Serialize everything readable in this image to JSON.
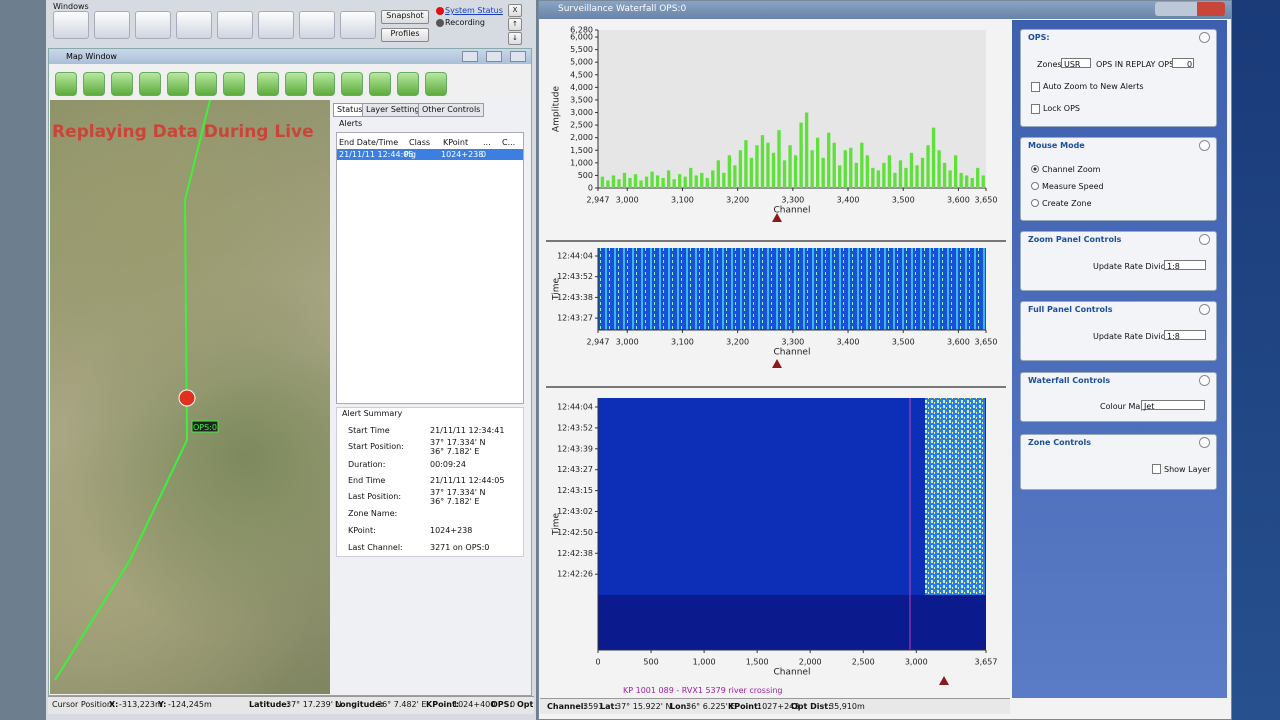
{
  "toolbar": {
    "title": "Windows",
    "buttons": [
      "Snapshot",
      "Profiles"
    ],
    "status": [
      "System Status",
      "Recording"
    ],
    "small_buttons": [
      "X",
      "↑",
      "↓"
    ]
  },
  "map_window": {
    "title": "Map Window",
    "overlay": "Replaying Data During Live",
    "marker": "OPS:0",
    "tabs": [
      "Status",
      "Layer Settings",
      "Other Controls"
    ],
    "alerts": {
      "title": "Alerts",
      "headers": [
        "End Date/Time",
        "Class",
        "KPoint",
        "...",
        "C..."
      ],
      "rows": [
        [
          "21/11/11 12:44:05",
          "Pig",
          "1024+238",
          "0"
        ]
      ]
    },
    "summary": {
      "title": "Alert Summary",
      "fields": [
        {
          "label": "Start Time",
          "value": [
            "21/11/11 12:34:41"
          ]
        },
        {
          "label": "Start Position:",
          "value": [
            "37° 17.334' N",
            "36° 7.182' E"
          ]
        },
        {
          "label": "Duration:",
          "value": [
            "00:09:24"
          ]
        },
        {
          "label": "End Time",
          "value": [
            "21/11/11 12:44:05"
          ]
        },
        {
          "label": "Last Position:",
          "value": [
            "37° 17.334' N",
            "36° 7.182' E"
          ]
        },
        {
          "label": "Zone Name:"
        },
        {
          "label": "KPoint:",
          "value": [
            "1024+238"
          ]
        },
        {
          "label": "Last Channel:",
          "value": [
            "3271 on OPS:0"
          ]
        }
      ]
    },
    "status": {
      "title": "Cursor Position:",
      "items": [
        {
          "label": "X:",
          "value": "-313,223m"
        },
        {
          "label": "Y:",
          "value": "-124,245m"
        },
        {
          "label": "Latitude:",
          "value": "37° 17.239' N"
        },
        {
          "label": "Longitude:",
          "value": "36° 7.482' E"
        },
        {
          "label": "KPoint:",
          "value": "1024+400"
        },
        {
          "label": "OPS:",
          "value": "0"
        },
        {
          "label": "Opt"
        }
      ]
    }
  },
  "waterfall_window": {
    "title": "Surveillance Waterfall OPS:0",
    "zoom_waterfall": {
      "ylabel": "Time",
      "yticks": [
        "12:44:04",
        "12:43:52",
        "12:43:38",
        "12:43:27"
      ],
      "xlabel": "Channel",
      "xlim": [
        2947,
        3650
      ],
      "xticks": [
        {
          "value": 2947,
          "label": "2,947"
        },
        {
          "value": 3000,
          "label": "3,000"
        },
        {
          "value": 3100,
          "label": "3,100"
        },
        {
          "value": 3200,
          "label": "3,200"
        },
        {
          "value": 3300,
          "label": "3,300"
        },
        {
          "value": 3400,
          "label": "3,400"
        },
        {
          "value": 3500,
          "label": "3,500"
        },
        {
          "value": 3600,
          "label": "3,600"
        },
        {
          "value": 3650,
          "label": "3,650"
        }
      ]
    },
    "full_waterfall": {
      "ylabel": "Time",
      "yticks": [
        "12:44:04",
        "12:43:52",
        "12:43:39",
        "12:43:27",
        "12:43:15",
        "12:43:02",
        "12:42:50",
        "12:42:38",
        "12:42:26"
      ],
      "xlabel": "Channel",
      "xlim": [
        0,
        3657
      ],
      "xticks": [
        0,
        500,
        {
          "value": 1000,
          "label": "1,000"
        },
        {
          "value": 1500,
          "label": "1,500"
        },
        {
          "value": 2000,
          "label": "2,000"
        },
        {
          "value": 2500,
          "label": "2,500"
        },
        {
          "value": 3000,
          "label": "3,000"
        },
        {
          "value": 3657,
          "label": "3,657"
        }
      ]
    },
    "annotation": "KP 1001 089 - RVX1 5379 river crossing",
    "status": [
      {
        "label": "Channel:",
        "value": "3591"
      },
      {
        "label": "Lat:",
        "value": "37° 15.922' N"
      },
      {
        "label": "Lon:",
        "value": "36° 6.225' E"
      },
      {
        "label": "KPoint:",
        "value": "1027+243"
      },
      {
        "label": "Opt Dist:",
        "value": "35,910m"
      }
    ]
  },
  "side_panel": {
    "ops": {
      "title": "OPS:",
      "zones": "Zones",
      "zone_value": "USR",
      "replay": "OPS IN REPLAY  OPS:",
      "replay_value": "0",
      "auto_zoom": "Auto Zoom to New Alerts",
      "lock": "Lock OPS"
    },
    "mouse_mode": {
      "title": "Mouse Mode",
      "options": [
        "Channel Zoom",
        "Measure Speed",
        "Create Zone"
      ]
    },
    "zoom_panel": {
      "title": "Zoom Panel Controls",
      "label": "Update Rate Divider",
      "value": "1:8"
    },
    "full_panel": {
      "title": "Full Panel Controls",
      "label": "Update Rate Divider",
      "value": "1:8"
    },
    "waterfall_controls": {
      "title": "Waterfall Controls",
      "label": "Colour Map",
      "value": "Jet"
    },
    "zone_controls": {
      "title": "Zone Controls",
      "label": "Show Layer"
    }
  },
  "chart_data": {
    "type": "bar",
    "ylabel": "Amplitude",
    "xlabel": "Channel",
    "color": "#5fe03a",
    "x": [
      2955,
      2965,
      2975,
      2985,
      2995,
      3005,
      3015,
      3025,
      3035,
      3045,
      3055,
      3065,
      3075,
      3085,
      3095,
      3105,
      3115,
      3125,
      3135,
      3145,
      3155,
      3165,
      3175,
      3185,
      3195,
      3205,
      3215,
      3225,
      3235,
      3245,
      3255,
      3265,
      3275,
      3285,
      3295,
      3305,
      3315,
      3325,
      3335,
      3345,
      3355,
      3365,
      3375,
      3385,
      3395,
      3405,
      3415,
      3425,
      3435,
      3445,
      3455,
      3465,
      3475,
      3485,
      3495,
      3505,
      3515,
      3525,
      3535,
      3545,
      3555,
      3565,
      3575,
      3585,
      3595,
      3605,
      3615,
      3625,
      3635,
      3645
    ],
    "values": [
      450,
      300,
      500,
      350,
      600,
      400,
      550,
      300,
      450,
      650,
      500,
      400,
      700,
      350,
      550,
      450,
      800,
      500,
      600,
      400,
      700,
      1100,
      600,
      1300,
      900,
      1500,
      1900,
      1200,
      1700,
      2100,
      1800,
      1400,
      2300,
      1100,
      1700,
      1300,
      2600,
      3000,
      1500,
      2000,
      1200,
      2200,
      1800,
      900,
      1500,
      1600,
      1000,
      1800,
      1300,
      800,
      700,
      1000,
      1300,
      600,
      1100,
      800,
      1400,
      900,
      1200,
      1700,
      2400,
      1500,
      1000,
      700,
      1300,
      600,
      500,
      400,
      800,
      500
    ],
    "xlim": [
      2947,
      3650
    ],
    "ylim": [
      0,
      6280
    ],
    "xticks": [
      {
        "value": 2947,
        "label": "2,947"
      },
      {
        "value": 3000,
        "label": "3,000"
      },
      {
        "value": 3100,
        "label": "3,100"
      },
      {
        "value": 3200,
        "label": "3,200"
      },
      {
        "value": 3300,
        "label": "3,300"
      },
      {
        "value": 3400,
        "label": "3,400"
      },
      {
        "value": 3500,
        "label": "3,500"
      },
      {
        "value": 3600,
        "label": "3,600"
      },
      {
        "value": 3650,
        "label": "3,650"
      }
    ],
    "yticks": [
      0,
      500,
      {
        "value": 1000,
        "label": "1,000"
      },
      {
        "value": 1500,
        "label": "1,500"
      },
      {
        "value": 2000,
        "label": "2,000"
      },
      {
        "value": 2500,
        "label": "2,500"
      },
      {
        "value": 3000,
        "label": "3,000"
      },
      {
        "value": 3500,
        "label": "3,500"
      },
      {
        "value": 4000,
        "label": "4,000"
      },
      {
        "value": 4500,
        "label": "4,500"
      },
      {
        "value": 5000,
        "label": "5,000"
      },
      {
        "value": 5500,
        "label": "5,500"
      },
      {
        "value": 6000,
        "label": "6,000"
      },
      {
        "value": 6280,
        "label": "6,280"
      }
    ]
  }
}
